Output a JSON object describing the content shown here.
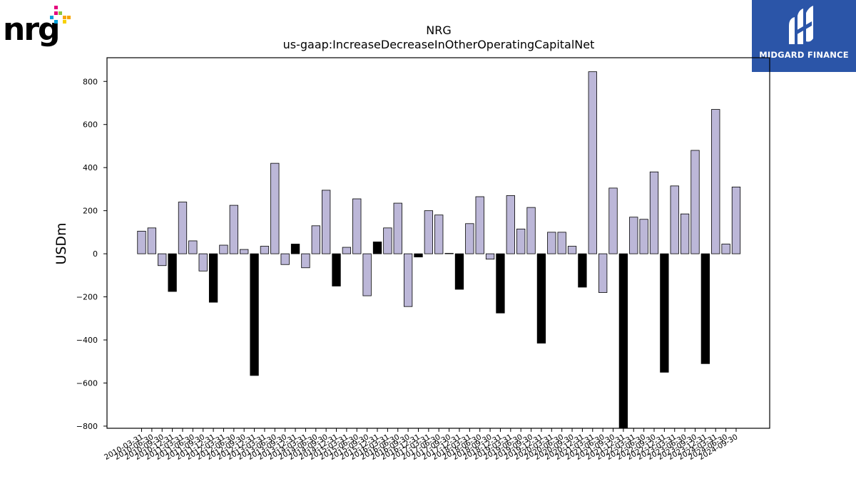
{
  "logos": {
    "left_text": "nrg",
    "left_mark": "®",
    "right_text": "MIDGARD FINANCE",
    "right_bg": "#2b55a8"
  },
  "colors": {
    "bar_positive": "#bcb7d8",
    "bar_negative": "#000000",
    "axis": "#000000"
  },
  "chart_data": {
    "type": "bar",
    "title": "NRG",
    "subtitle": "us-gaap:IncreaseDecreaseInOtherOperatingCapitalNet",
    "xlabel": "",
    "ylabel": "USDm",
    "ylim": [
      -810,
      910
    ],
    "yticks": [
      -800,
      -600,
      -400,
      -200,
      0,
      200,
      400,
      600,
      800
    ],
    "grid": false,
    "categories": [
      "2010-03-31",
      "2010-06-30",
      "2010-09-30",
      "2010-12-31",
      "2011-03-31",
      "2011-06-30",
      "2011-09-30",
      "2011-12-31",
      "2012-03-31",
      "2012-06-30",
      "2012-09-30",
      "2012-12-31",
      "2013-03-31",
      "2013-06-30",
      "2013-09-30",
      "2013-12-31",
      "2014-03-31",
      "2014-06-30",
      "2014-09-30",
      "2014-12-31",
      "2015-03-31",
      "2015-06-30",
      "2015-09-30",
      "2015-12-31",
      "2016-03-31",
      "2016-06-30",
      "2016-09-30",
      "2016-12-31",
      "2017-03-31",
      "2017-06-30",
      "2017-09-30",
      "2017-12-31",
      "2018-03-31",
      "2018-06-30",
      "2018-09-30",
      "2018-12-31",
      "2019-03-31",
      "2019-06-30",
      "2019-09-30",
      "2019-12-31",
      "2020-03-31",
      "2020-06-30",
      "2020-09-30",
      "2020-12-31",
      "2021-03-31",
      "2021-06-30",
      "2021-09-30",
      "2021-12-31",
      "2022-03-31",
      "2022-06-30",
      "2022-09-30",
      "2022-12-31",
      "2023-03-31",
      "2023-06-30",
      "2023-09-30",
      "2023-12-31",
      "2024-03-31",
      "2024-06-30",
      "2024-09-30"
    ],
    "values": [
      105,
      120,
      -55,
      -175,
      240,
      60,
      -80,
      -225,
      40,
      225,
      20,
      -565,
      35,
      420,
      -50,
      45,
      -65,
      130,
      295,
      -150,
      30,
      255,
      -195,
      55,
      120,
      235,
      -245,
      -15,
      200,
      180,
      2,
      -165,
      140,
      265,
      -25,
      -275,
      270,
      115,
      215,
      -415,
      100,
      100,
      35,
      -155,
      845,
      -180,
      305,
      -810,
      170,
      160,
      380,
      -550,
      315,
      185,
      480,
      -510,
      670,
      45,
      310
    ],
    "negative_in_q4": [
      false,
      false,
      false,
      true,
      false,
      false,
      false,
      true,
      false,
      false,
      false,
      true,
      false,
      false,
      false,
      true,
      false,
      false,
      false,
      true,
      false,
      false,
      false,
      true,
      false,
      false,
      false,
      true,
      false,
      false,
      false,
      true,
      false,
      false,
      false,
      true,
      false,
      false,
      false,
      true,
      false,
      false,
      false,
      true,
      false,
      false,
      false,
      true,
      false,
      false,
      false,
      true,
      false,
      false,
      false,
      true,
      false,
      false,
      false
    ]
  }
}
